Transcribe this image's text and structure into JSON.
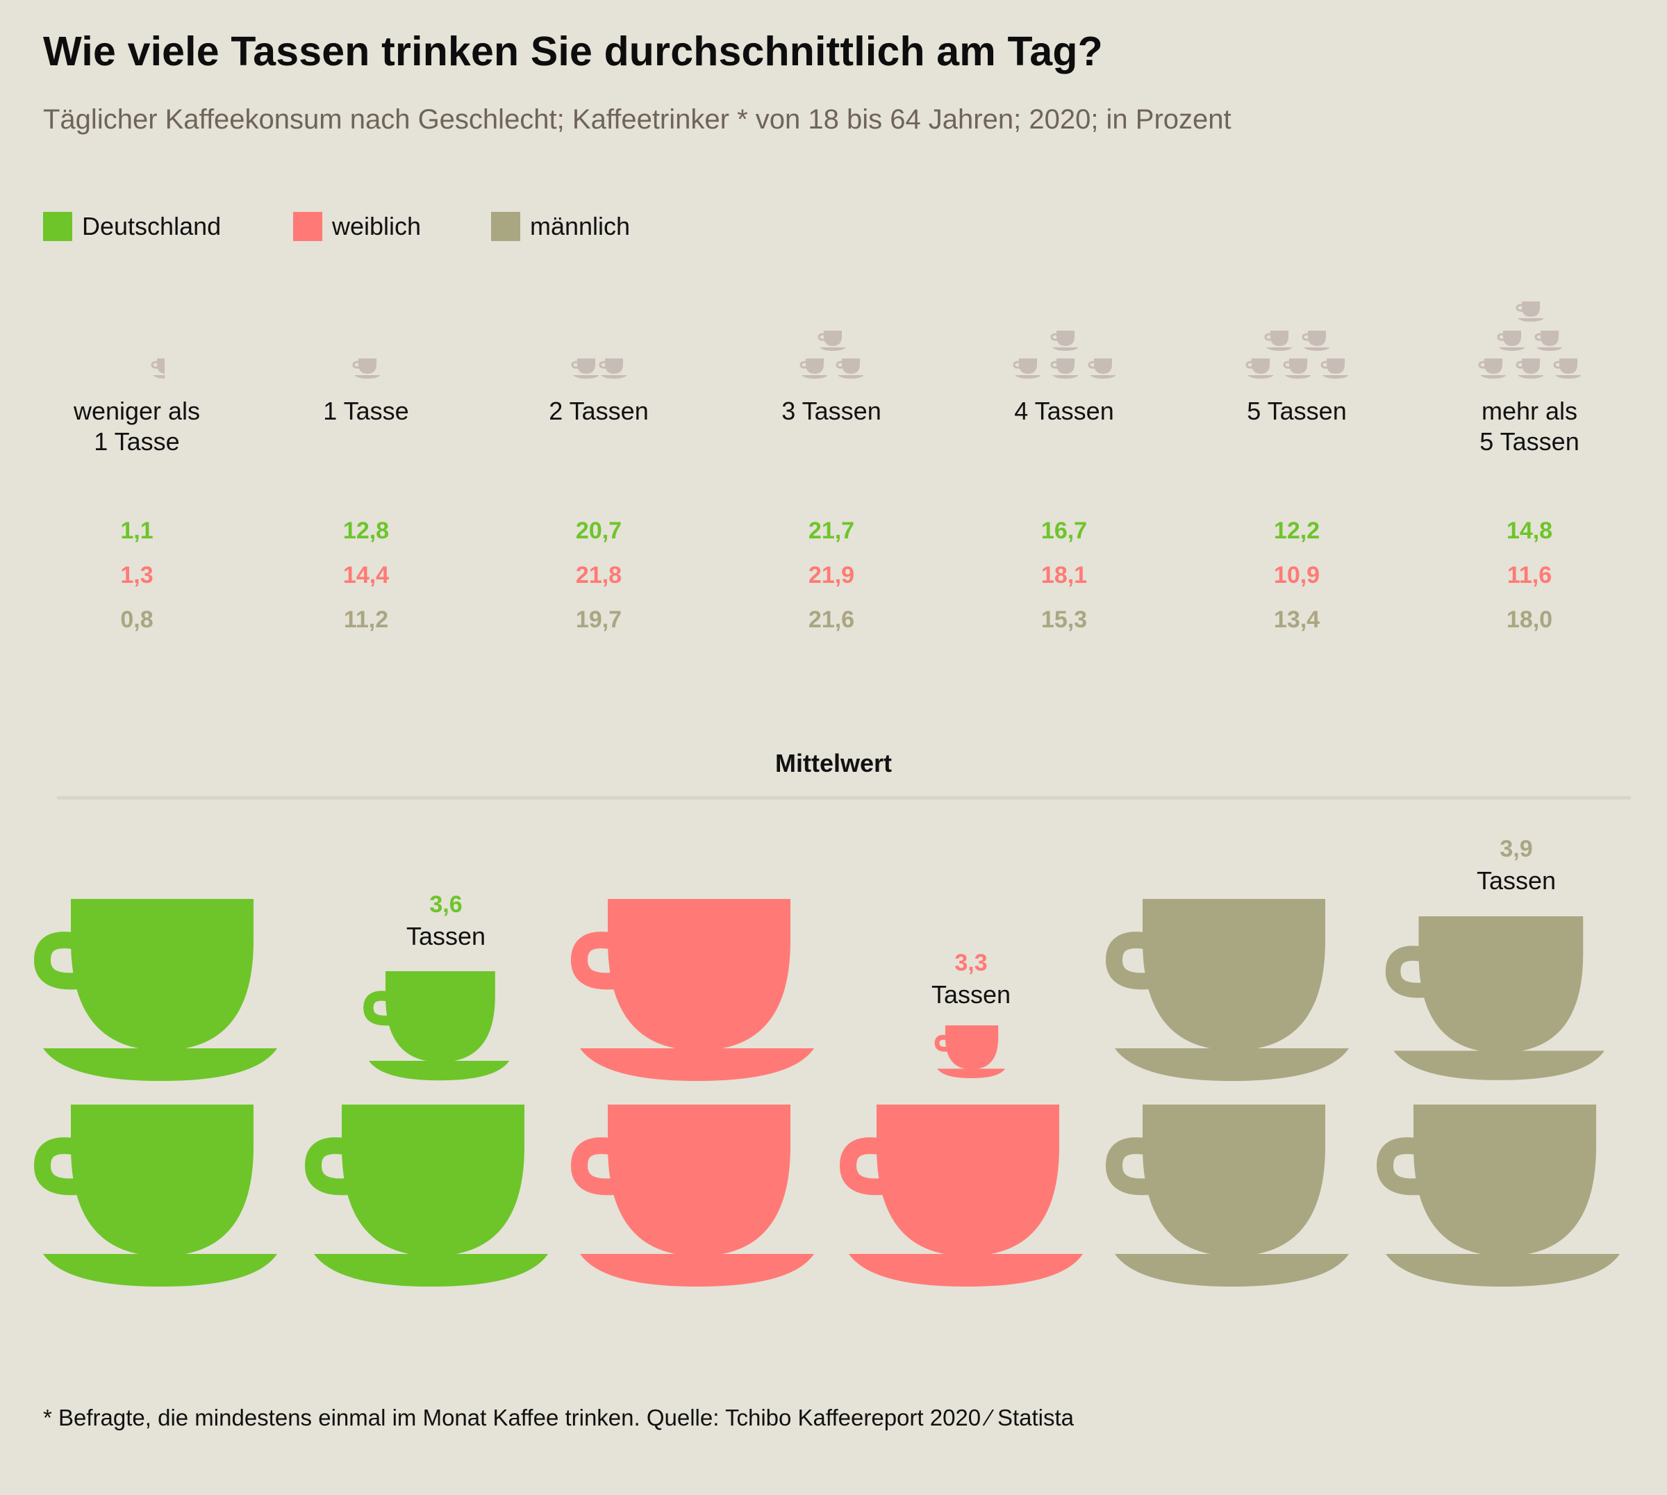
{
  "header": {
    "title": "Wie viele Tassen trinken Sie durchschnittlich am Tag?",
    "subtitle": "Täglicher Kaffeekonsum nach Geschlecht; Kaffeetrinker * von 18 bis 64 Jahren; 2020; in Prozent"
  },
  "colors": {
    "deutschland": "#6dc52a",
    "weiblich": "#ff7a76",
    "maennlich": "#a9a682",
    "icon": "#c8bcb6"
  },
  "legend": [
    "Deutschland",
    "weiblich",
    "männlich"
  ],
  "chart_data": [
    {
      "type": "table",
      "title": "Wie viele Tassen trinken Sie durchschnittlich am Tag?",
      "subtitle": "Täglicher Kaffeekonsum nach Geschlecht; Kaffeetrinker * von 18 bis 64 Jahren; 2020; in Prozent",
      "categories": [
        {
          "line1": "weniger als",
          "line2": "1 Tasse"
        },
        {
          "line1": "1 Tasse",
          "line2": ""
        },
        {
          "line1": "2 Tassen",
          "line2": ""
        },
        {
          "line1": "3 Tassen",
          "line2": ""
        },
        {
          "line1": "4 Tassen",
          "line2": ""
        },
        {
          "line1": "5 Tassen",
          "line2": ""
        },
        {
          "line1": "mehr als",
          "line2": "5 Tassen"
        }
      ],
      "icon_counts": [
        0.5,
        1,
        2,
        3,
        4,
        5,
        6
      ],
      "series": [
        {
          "name": "Deutschland",
          "values": [
            "1,1",
            "12,8",
            "20,7",
            "21,7",
            "16,7",
            "12,2",
            "14,8"
          ]
        },
        {
          "name": "weiblich",
          "values": [
            "1,3",
            "14,4",
            "21,8",
            "21,9",
            "18,1",
            "10,9",
            "11,6"
          ]
        },
        {
          "name": "männlich",
          "values": [
            "0,8",
            "11,2",
            "19,7",
            "21,6",
            "15,3",
            "13,4",
            "18,0"
          ]
        }
      ]
    },
    {
      "type": "bar",
      "title": "Mittelwert",
      "categories": [
        "Deutschland",
        "weiblich",
        "männlich"
      ],
      "values": [
        3.6,
        3.3,
        3.9
      ],
      "labels": [
        "3,6",
        "3,3",
        "3,9"
      ],
      "unit": "Tassen"
    }
  ],
  "footnote": "* Befragte, die mindestens einmal im Monat Kaffee trinken. Quelle: Tchibo Kaffeereport 2020 ⁄ Statista"
}
